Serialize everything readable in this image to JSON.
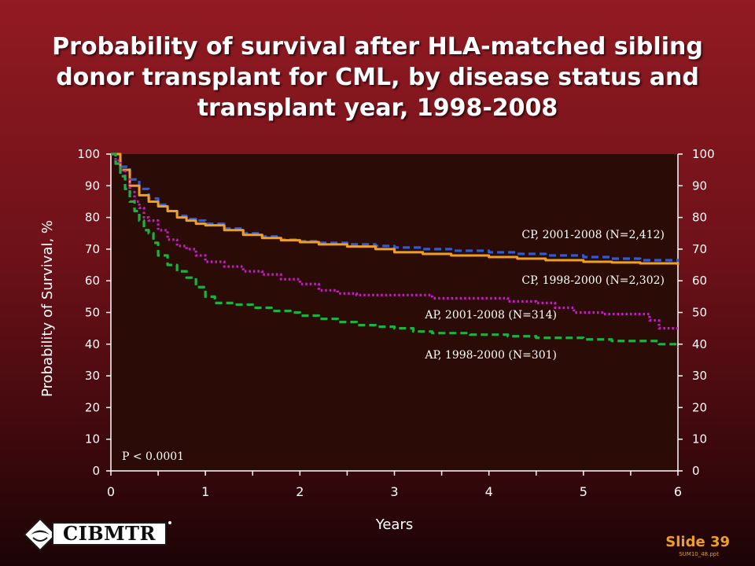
{
  "title": "Probability of survival after HLA-matched sibling donor transplant for CML, by disease status and transplant year, 1998-2008",
  "chart_data": {
    "type": "line",
    "title": "Probability of survival after HLA-matched sibling donor transplant for CML, by disease status and transplant year, 1998-2008",
    "xlabel": "Years",
    "ylabel": "Probability of Survival, %",
    "xlim": [
      0,
      6
    ],
    "ylim": [
      0,
      100
    ],
    "x_ticks": [
      0,
      1,
      2,
      3,
      4,
      5,
      6
    ],
    "y_ticks": [
      0,
      10,
      20,
      30,
      40,
      50,
      60,
      70,
      80,
      90,
      100
    ],
    "grid": false,
    "right_axis": true,
    "annotation": "P < 0.0001",
    "series": [
      {
        "name": "CP, 2001-2008 (N=2,412)",
        "color": "#2a5cdc",
        "style": "dashed",
        "x": [
          0,
          0.1,
          0.2,
          0.3,
          0.4,
          0.5,
          0.6,
          0.7,
          0.8,
          0.9,
          1.0,
          1.2,
          1.4,
          1.6,
          1.8,
          2.0,
          2.2,
          2.5,
          2.8,
          3.0,
          3.3,
          3.6,
          4.0,
          4.3,
          4.6,
          5.0,
          5.3,
          5.6,
          6.0
        ],
        "values": [
          100,
          96,
          92,
          89,
          86,
          84,
          82,
          80.5,
          79.5,
          79,
          78,
          76.5,
          75,
          74,
          73,
          72.5,
          72,
          71.5,
          71,
          70.5,
          70,
          69.5,
          69,
          68.5,
          68,
          67.5,
          67,
          66.5,
          66
        ]
      },
      {
        "name": "CP, 1998-2000 (N=2,302)",
        "color": "#f0a020",
        "style": "solid",
        "x": [
          0,
          0.1,
          0.2,
          0.3,
          0.4,
          0.5,
          0.6,
          0.7,
          0.8,
          0.9,
          1.0,
          1.2,
          1.4,
          1.6,
          1.8,
          2.0,
          2.2,
          2.5,
          2.8,
          3.0,
          3.3,
          3.6,
          4.0,
          4.3,
          4.6,
          5.0,
          5.3,
          5.6,
          6.0
        ],
        "values": [
          100,
          95,
          90,
          87,
          85,
          83.5,
          82,
          80,
          79,
          78,
          77.5,
          76,
          74.5,
          73.5,
          72.8,
          72.2,
          71.5,
          70.8,
          70,
          69,
          68.5,
          68,
          67.5,
          67,
          66.5,
          66,
          65.8,
          65.5,
          65
        ]
      },
      {
        "name": "AP, 2001-2008 (N=314)",
        "color": "#c020c0",
        "style": "dotted",
        "x": [
          0,
          0.05,
          0.1,
          0.15,
          0.2,
          0.25,
          0.3,
          0.35,
          0.4,
          0.5,
          0.6,
          0.7,
          0.8,
          0.9,
          1.0,
          1.2,
          1.4,
          1.6,
          1.8,
          2.0,
          2.2,
          2.4,
          2.6,
          2.8,
          3.0,
          3.2,
          3.4,
          3.8,
          4.0,
          4.2,
          4.5,
          4.7,
          4.9,
          5.2,
          5.5,
          5.7,
          5.8,
          6.0
        ],
        "values": [
          100,
          98,
          95,
          92,
          88,
          85,
          83,
          80,
          79,
          76,
          73,
          71,
          70,
          68,
          66,
          64.5,
          63,
          62,
          60.5,
          59,
          57,
          56,
          55.5,
          55.5,
          55.5,
          55.5,
          54.5,
          54.5,
          54.5,
          53.5,
          53,
          51.5,
          50,
          49.5,
          49.5,
          47.5,
          45,
          45
        ]
      },
      {
        "name": "AP, 1998-2000 (N=301)",
        "color": "#20b040",
        "style": "dashed",
        "x": [
          0,
          0.05,
          0.1,
          0.15,
          0.2,
          0.25,
          0.3,
          0.35,
          0.4,
          0.45,
          0.5,
          0.6,
          0.7,
          0.8,
          0.9,
          1.0,
          1.1,
          1.3,
          1.5,
          1.7,
          1.9,
          2.0,
          2.2,
          2.4,
          2.6,
          2.8,
          3.0,
          3.2,
          3.4,
          3.8,
          4.2,
          4.5,
          4.8,
          5.0,
          5.3,
          5.6,
          5.8,
          6.0
        ],
        "values": [
          100,
          97,
          93,
          89,
          85,
          82,
          79,
          76,
          75,
          72,
          68,
          65,
          63,
          61,
          58,
          55,
          53,
          52.5,
          51.5,
          50.5,
          50,
          49,
          48,
          47,
          46,
          45.5,
          45,
          44,
          43.5,
          43,
          42.5,
          42,
          42,
          41.5,
          41,
          41,
          40,
          39
        ]
      }
    ]
  },
  "logo": {
    "text": "CIBMTR"
  },
  "slide_label": "Slide 39",
  "file_label": "SUM10_48.ppt"
}
